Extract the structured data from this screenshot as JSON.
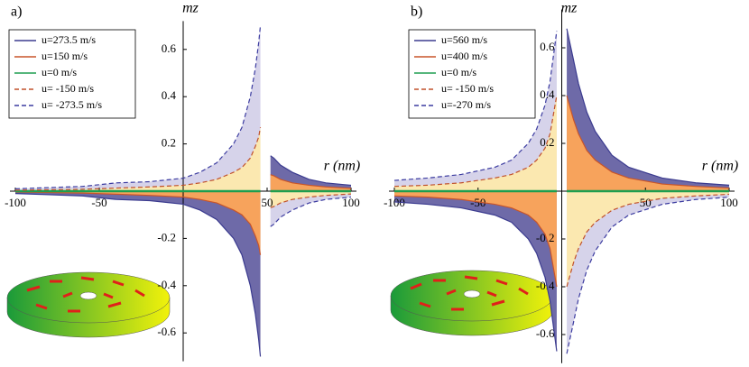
{
  "chart_data": [
    {
      "type": "line",
      "panel_label": "a)",
      "ylabel": "mz",
      "xlabel": "r (nm)",
      "legend": "upper left",
      "x": [
        -100,
        -80,
        -60,
        -40,
        -20,
        0,
        10,
        20,
        30,
        35,
        40,
        43,
        45,
        46,
        49,
        52,
        54,
        58,
        65,
        75,
        85,
        100
      ],
      "xlim": [
        -100,
        100
      ],
      "ylim": [
        -0.72,
        0.72
      ],
      "xticks": [
        -100,
        -50,
        50,
        100
      ],
      "yticks": [
        -0.6,
        -0.4,
        -0.2,
        0.2,
        0.4,
        0.6
      ],
      "series": [
        {
          "name": "u=273.5 m/s",
          "color": "#3b3b8f",
          "dash": false,
          "fill": "#6e6aa8",
          "values": [
            -0.01,
            -0.015,
            -0.02,
            -0.035,
            -0.04,
            -0.055,
            -0.08,
            -0.12,
            -0.2,
            -0.27,
            -0.4,
            -0.52,
            -0.63,
            -0.7,
            null,
            0.15,
            0.14,
            0.11,
            0.08,
            0.05,
            0.035,
            0.025
          ]
        },
        {
          "name": "u=150 m/s",
          "color": "#c8552a",
          "dash": false,
          "fill": "#f7a35c",
          "values": [
            -0.004,
            -0.006,
            -0.008,
            -0.013,
            -0.018,
            -0.025,
            -0.035,
            -0.05,
            -0.08,
            -0.1,
            -0.14,
            -0.19,
            -0.23,
            -0.27,
            null,
            0.07,
            0.065,
            0.05,
            0.035,
            0.025,
            0.018,
            0.012
          ]
        },
        {
          "name": "u=0 m/s",
          "color": "#1e9e50",
          "dash": false,
          "values": [
            0,
            0,
            0,
            0,
            0,
            0,
            0,
            0,
            0,
            0,
            0,
            0,
            0,
            0,
            null,
            0,
            0,
            0,
            0,
            0,
            0,
            0
          ]
        },
        {
          "name": "u= -150 m/s",
          "color": "#c0502a",
          "dash": true,
          "fill": "#fbe8b0",
          "values": [
            0.004,
            0.006,
            0.008,
            0.013,
            0.018,
            0.025,
            0.035,
            0.05,
            0.08,
            0.1,
            0.14,
            0.19,
            0.23,
            0.27,
            null,
            -0.07,
            -0.065,
            -0.05,
            -0.035,
            -0.025,
            -0.018,
            -0.012
          ]
        },
        {
          "name": "u= -273.5 m/s",
          "color": "#3c3ca0",
          "dash": true,
          "fill": "#d6d3ea",
          "values": [
            0.01,
            0.015,
            0.02,
            0.035,
            0.04,
            0.055,
            0.08,
            0.12,
            0.2,
            0.27,
            0.4,
            0.52,
            0.63,
            0.7,
            null,
            -0.15,
            -0.14,
            -0.11,
            -0.08,
            -0.05,
            -0.035,
            -0.025
          ]
        }
      ]
    },
    {
      "type": "line",
      "panel_label": "b)",
      "ylabel": "mz",
      "xlabel": "r (nm)",
      "legend": "upper left",
      "x": [
        -100,
        -80,
        -60,
        -40,
        -30,
        -20,
        -15,
        -10,
        -7,
        -3,
        0,
        3,
        7,
        10,
        15,
        20,
        30,
        40,
        60,
        80,
        100
      ],
      "xlim": [
        -100,
        100
      ],
      "ylim": [
        -0.72,
        0.76
      ],
      "xticks": [
        -100,
        -50,
        50,
        100
      ],
      "yticks": [
        -0.6,
        -0.4,
        -0.2,
        0.2,
        0.4,
        0.6
      ],
      "series": [
        {
          "name": "u=560 m/s",
          "color": "#3b3b8f",
          "dash": false,
          "fill": "#6e6aa8",
          "values": [
            -0.045,
            -0.055,
            -0.07,
            -0.1,
            -0.13,
            -0.2,
            -0.26,
            -0.36,
            -0.46,
            -0.67,
            null,
            0.68,
            0.55,
            0.45,
            0.33,
            0.25,
            0.15,
            0.1,
            0.055,
            0.035,
            0.025
          ]
        },
        {
          "name": "u=400  m/s",
          "color": "#c8552a",
          "dash": false,
          "fill": "#f7a35c",
          "values": [
            -0.02,
            -0.025,
            -0.035,
            -0.055,
            -0.07,
            -0.1,
            -0.13,
            -0.18,
            -0.24,
            -0.4,
            null,
            0.4,
            0.3,
            0.24,
            0.17,
            0.13,
            0.08,
            0.055,
            0.03,
            0.02,
            0.013
          ]
        },
        {
          "name": "u=0 m/s",
          "color": "#1e9e50",
          "dash": false,
          "values": [
            0,
            0,
            0,
            0,
            0,
            0,
            0,
            0,
            0,
            0,
            null,
            0,
            0,
            0,
            0,
            0,
            0,
            0,
            0,
            0,
            0
          ]
        },
        {
          "name": "u= -150 m/s",
          "color": "#c0502a",
          "dash": true,
          "fill": "#fbe8b0",
          "values": [
            0.02,
            0.025,
            0.035,
            0.055,
            0.07,
            0.1,
            0.13,
            0.18,
            0.24,
            0.4,
            null,
            -0.4,
            -0.3,
            -0.24,
            -0.17,
            -0.13,
            -0.08,
            -0.055,
            -0.03,
            -0.02,
            -0.013
          ]
        },
        {
          "name": "u=-270  m/s",
          "color": "#3c3ca0",
          "dash": true,
          "fill": "#d6d3ea",
          "values": [
            0.045,
            0.055,
            0.07,
            0.1,
            0.13,
            0.2,
            0.26,
            0.36,
            0.46,
            0.67,
            null,
            -0.68,
            -0.55,
            -0.45,
            -0.33,
            -0.25,
            -0.15,
            -0.1,
            -0.055,
            -0.035,
            -0.025
          ]
        }
      ]
    }
  ]
}
